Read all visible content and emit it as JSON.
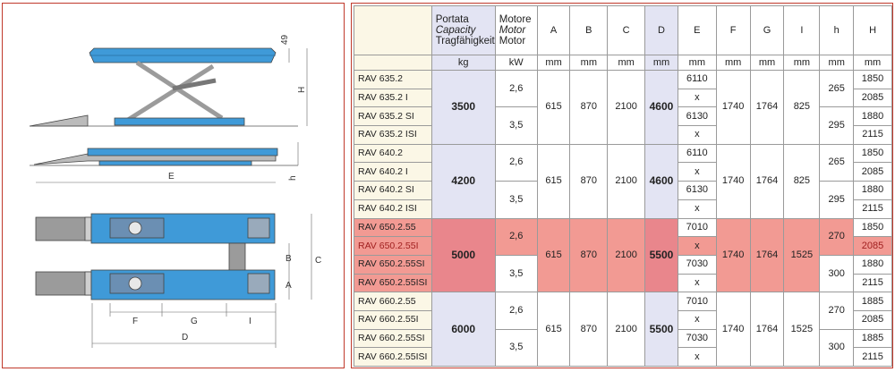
{
  "diagram": {
    "dim_labels": {
      "top_49": "49",
      "H": "H",
      "h": "h",
      "E": "E",
      "C": "C",
      "B": "B",
      "A": "A",
      "F": "F",
      "G": "G",
      "I": "I",
      "D": "D"
    },
    "colors": {
      "blue": "#3f9ad8",
      "grey": "#9b9b9b",
      "panel_border": "#c0392b"
    }
  },
  "table": {
    "header": {
      "capacity": [
        "Portata",
        "Capacity",
        "Tragfähigkeit"
      ],
      "motor": [
        "Motore",
        "Motor",
        "Motor"
      ],
      "cols": [
        "A",
        "B",
        "C",
        "D",
        "E",
        "F",
        "G",
        "I",
        "h",
        "H"
      ]
    },
    "units": [
      "kg",
      "kW",
      "mm",
      "mm",
      "mm",
      "mm",
      "mm",
      "mm",
      "mm",
      "mm",
      "mm",
      "mm"
    ],
    "groups": [
      {
        "models": [
          "RAV 635.2",
          "RAV 635.2 I",
          "RAV 635.2 SI",
          "RAV 635.2 ISI"
        ],
        "capacity": "3500",
        "kw": [
          "2,6",
          "3,5"
        ],
        "A": "615",
        "B": "870",
        "C": "2100",
        "D": "4600",
        "E": [
          "6110",
          "x",
          "6130",
          "x"
        ],
        "F": "1740",
        "G": "1764",
        "I": "825",
        "h": [
          "265",
          "295"
        ],
        "H": [
          "1850",
          "2085",
          "1880",
          "2115"
        ]
      },
      {
        "models": [
          "RAV 640.2",
          "RAV 640.2 I",
          "RAV 640.2 SI",
          "RAV 640.2 ISI"
        ],
        "capacity": "4200",
        "kw": [
          "2,6",
          "3,5"
        ],
        "A": "615",
        "B": "870",
        "C": "2100",
        "D": "4600",
        "E": [
          "6110",
          "x",
          "6130",
          "x"
        ],
        "F": "1740",
        "G": "1764",
        "I": "825",
        "h": [
          "265",
          "295"
        ],
        "H": [
          "1850",
          "2085",
          "1880",
          "2115"
        ]
      },
      {
        "models": [
          "RAV 650.2.55",
          "RAV 650.2.55I",
          "RAV 650.2.55SI",
          "RAV 650.2.55ISI"
        ],
        "capacity": "5000",
        "kw": [
          "2,6",
          "3,5"
        ],
        "A": "615",
        "B": "870",
        "C": "2100",
        "D": "5500",
        "E": [
          "7010",
          "x",
          "7030",
          "x"
        ],
        "F": "1740",
        "G": "1764",
        "I": "1525",
        "h": [
          "270",
          "300"
        ],
        "H": [
          "1850",
          "2085",
          "1880",
          "2115"
        ]
      },
      {
        "models": [
          "RAV 660.2.55",
          "RAV 660.2.55I",
          "RAV 660.2.55SI",
          "RAV 660.2.55ISI"
        ],
        "capacity": "6000",
        "kw": [
          "2,6",
          "3,5"
        ],
        "A": "615",
        "B": "870",
        "C": "2100",
        "D": "5500",
        "E": [
          "7010",
          "x",
          "7030",
          "x"
        ],
        "F": "1740",
        "G": "1764",
        "I": "1525",
        "h": [
          "270",
          "300"
        ],
        "H": [
          "1885",
          "2085",
          "1885",
          "2115"
        ]
      }
    ]
  }
}
